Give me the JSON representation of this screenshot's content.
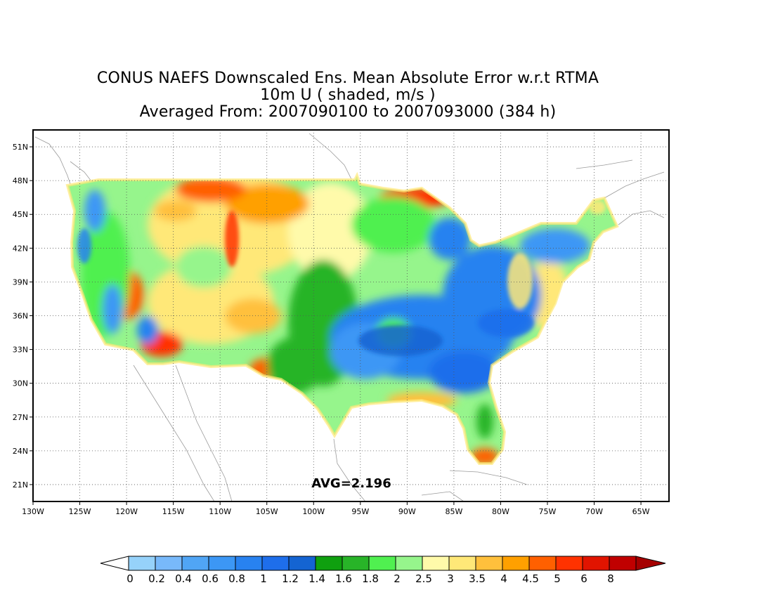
{
  "title": {
    "line1": "CONUS NAEFS Downscaled Ens. Mean Absolute Error w.r.t RTMA",
    "line2": "10m U ( shaded, m/s )",
    "line3": "Averaged From: 2007090100 to 2007093000 (384 h)"
  },
  "map": {
    "lon_range": [
      -130,
      -62
    ],
    "lat_range": [
      19.5,
      52.5
    ],
    "lat_ticks": [
      "51N",
      "48N",
      "45N",
      "42N",
      "39N",
      "36N",
      "33N",
      "30N",
      "27N",
      "24N",
      "21N"
    ],
    "lon_ticks": [
      "130W",
      "125W",
      "120W",
      "115W",
      "110W",
      "105W",
      "100W",
      "95W",
      "90W",
      "85W",
      "80W",
      "75W",
      "70W",
      "65W"
    ],
    "grid": "dotted",
    "avg_label": "AVG=2.196"
  },
  "colorbar": {
    "labels": [
      "0",
      "0.2",
      "0.4",
      "0.6",
      "0.8",
      "1",
      "1.2",
      "1.4",
      "1.6",
      "1.8",
      "2",
      "2.5",
      "3",
      "3.5",
      "4",
      "4.5",
      "5",
      "6",
      "8"
    ],
    "colors": [
      "#96d2fa",
      "#78b9fa",
      "#50a5f5",
      "#3c97f5",
      "#2882f0",
      "#1e6eeb",
      "#1464d2",
      "#0fa00f",
      "#28b428",
      "#50f050",
      "#96f58c",
      "#fffaaa",
      "#ffe878",
      "#ffc03c",
      "#ffa000",
      "#ff6000",
      "#ff3200",
      "#e11400",
      "#c00000"
    ],
    "under_color": "#ffffff",
    "over_color": "#a50000"
  }
}
